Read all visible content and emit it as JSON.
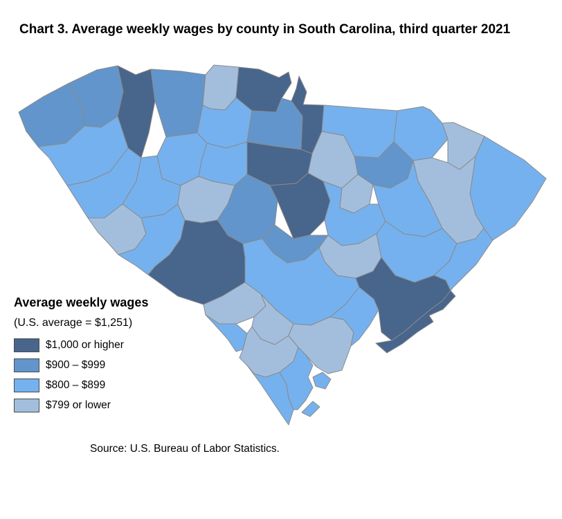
{
  "title": "Chart 3. Average weekly wages by county in South Carolina, third quarter 2021",
  "source": "Source: U.S. Bureau of Labor Statistics.",
  "legend": {
    "heading": "Average weekly wages",
    "subheading": "(U.S. average = $1,251)",
    "classes": [
      {
        "key": "c1",
        "label": "$1,000 or higher",
        "color": "#48658c"
      },
      {
        "key": "c2",
        "label": "$900 – $999",
        "color": "#6295cb"
      },
      {
        "key": "c3",
        "label": "$800 – $899",
        "color": "#75b1ee"
      },
      {
        "key": "c4",
        "label": "$799 or lower",
        "color": "#a3bedd"
      }
    ]
  },
  "chart_data": {
    "type": "heatmap",
    "subtype": "choropleth-map",
    "title": "Chart 3. Average weekly wages by county in South Carolina, third quarter 2021",
    "geography": "South Carolina counties",
    "period": "third quarter 2021",
    "measure": "Average weekly wages",
    "us_average": "$1,251",
    "legend_position": "left-middle",
    "bins": [
      {
        "label": "$1,000 or higher",
        "color": "#48658c",
        "counties": [
          "Greenville",
          "York",
          "Lancaster",
          "Fairfield",
          "Richland",
          "Aiken",
          "Berkeley",
          "Charleston"
        ]
      },
      {
        "label": "$900 – $999",
        "color": "#6295cb",
        "counties": [
          "Oconee",
          "Pickens",
          "Spartanburg",
          "Chester",
          "Lexington",
          "Calhoun",
          "Darlington"
        ]
      },
      {
        "label": "$800 – $899",
        "color": "#75b1ee",
        "counties": [
          "Anderson",
          "Abbeville",
          "Laurens",
          "Union",
          "Greenwood",
          "Newberry",
          "Edgefield",
          "Chesterfield",
          "Marlboro",
          "Sumter",
          "Florence",
          "Horry",
          "Williamsburg",
          "Georgetown",
          "Orangeburg",
          "Dorchester",
          "Allendale",
          "Jasper",
          "Beaufort"
        ]
      },
      {
        "label": "$799 or lower",
        "color": "#a3bedd",
        "counties": [
          "Cherokee",
          "McCormick",
          "Saluda",
          "Kershaw",
          "Lee",
          "Dillon",
          "Marion",
          "Clarendon",
          "Barnwell",
          "Bamberg",
          "Hampton",
          "Colleton"
        ]
      }
    ],
    "source": "U.S. Bureau of Labor Statistics"
  },
  "map": {
    "border_color": "#8a8a8a",
    "bin_colors": {
      "c1": "#48658c",
      "c2": "#6295cb",
      "c3": "#75b1ee",
      "c4": "#a3bedd"
    },
    "counties": [
      {
        "name": "Oconee",
        "bin": "c2",
        "rings": [
          "27,162 62,140 98,121 118,150 122,182 95,207 55,212 38,190"
        ]
      },
      {
        "name": "Pickens",
        "bin": "c2",
        "rings": [
          "98,121 140,101 170,95 178,132 170,168 146,184 122,182 118,150"
        ]
      },
      {
        "name": "Greenville",
        "bin": "c1",
        "rings": [
          "170,95 196,108 218,100 224,146 215,192 204,228 185,214 170,168 178,132"
        ]
      },
      {
        "name": "Spartanburg",
        "bin": "c2",
        "rings": [
          "218,100 262,103 297,108 293,152 285,192 240,198 224,146"
        ]
      },
      {
        "name": "Cherokee",
        "bin": "c4",
        "rings": [
          "297,108 309,94 345,97 341,141 325,159 303,157 293,152"
        ]
      },
      {
        "name": "York",
        "bin": "c1",
        "rings": [
          "345,97 374,100 403,112 417,104 421,120 407,142 399,162 364,160 341,141"
        ]
      },
      {
        "name": "Lancaster",
        "bin": "c1",
        "rings": [
          "432,110 443,133 438,151 468,152 465,190 451,222 435,216 437,168 421,146 428,128"
        ]
      },
      {
        "name": "Union",
        "bin": "c3",
        "rings": [
          "293,152 303,157 325,159 341,141 364,160 357,205 327,214 299,207 285,192"
        ]
      },
      {
        "name": "Chester",
        "bin": "c2",
        "rings": [
          "364,160 399,162 407,142 421,146 437,168 435,216 395,211 357,205"
        ]
      },
      {
        "name": "Chesterfield",
        "bin": "c3",
        "rings": [
          "468,152 520,156 574,160 569,205 547,228 512,226 497,196 465,190"
        ]
      },
      {
        "name": "Marlboro",
        "bin": "c3",
        "rings": [
          "574,160 611,154 622,159 639,178 647,201 624,228 597,232 569,205"
        ]
      },
      {
        "name": "Dillon",
        "bin": "c4",
        "rings": [
          "639,178 655,177 700,197 687,226 664,245 647,235 647,201"
        ]
      },
      {
        "name": "Horry",
        "bin": "c3",
        "rings": [
          "700,197 757,231 789,258 769,292 744,326 712,347 699,330 687,310 679,280 687,226"
        ]
      },
      {
        "name": "Marion",
        "bin": "c4",
        "rings": [
          "597,232 624,228 647,235 664,245 687,226 679,280 687,310 699,330 687,345 660,352 639,330 621,292 604,262"
        ]
      },
      {
        "name": "Darlington",
        "bin": "c2",
        "rings": [
          "512,226 547,228 569,205 597,232 589,258 564,272 539,267 517,252"
        ]
      },
      {
        "name": "Florence",
        "bin": "c3",
        "rings": [
          "589,258 597,232 604,262 621,292 639,330 614,342 584,338 557,320 547,295 539,267 564,272"
        ]
      },
      {
        "name": "Kershaw",
        "bin": "c4",
        "rings": [
          "451,222 465,190 497,196 512,226 517,252 494,272 467,262 445,250"
        ]
      },
      {
        "name": "Lee",
        "bin": "c4",
        "rings": [
          "494,272 517,252 539,267 534,295 511,308 491,300"
        ]
      },
      {
        "name": "Fairfield",
        "bin": "c1",
        "rings": [
          "357,205 395,211 435,216 451,222 445,250 428,265 390,268 357,252"
        ]
      },
      {
        "name": "Newberry",
        "bin": "c3",
        "rings": [
          "299,207 327,214 357,205 357,252 339,268 307,262 287,255 291,232"
        ]
      },
      {
        "name": "Laurens",
        "bin": "c3",
        "rings": [
          "240,198 285,192 299,207 291,232 287,255 261,268 234,258 227,225"
        ]
      },
      {
        "name": "Anderson",
        "bin": "c3",
        "rings": [
          "55,212 95,207 122,182 146,184 170,168 185,214 159,248 127,262 97,268 71,228"
        ]
      },
      {
        "name": "Abbeville",
        "bin": "c3",
        "rings": [
          "97,268 127,262 159,248 185,214 204,228 197,262 177,295 151,315 127,315 111,290"
        ]
      },
      {
        "name": "Greenwood",
        "bin": "c3",
        "rings": [
          "204,228 227,225 234,258 261,268 257,295 237,310 204,315 177,295 197,262"
        ]
      },
      {
        "name": "McCormick",
        "bin": "c4",
        "rings": [
          "127,315 151,315 177,295 204,315 211,338 195,360 171,368 157,352 141,335"
        ]
      },
      {
        "name": "Edgefield",
        "bin": "c3",
        "rings": [
          "195,360 211,338 204,315 237,310 257,295 267,318 261,345 245,368 224,385 214,397 195,383 177,372 171,368"
        ]
      },
      {
        "name": "Saluda",
        "bin": "c4",
        "rings": [
          "257,295 261,268 287,255 307,262 339,268 329,295 314,318 291,322 267,318"
        ]
      },
      {
        "name": "Lexington",
        "bin": "c2",
        "rings": [
          "339,268 357,252 390,268 401,290 397,325 379,345 351,352 329,340 317,322 314,318 329,295"
        ]
      },
      {
        "name": "Richland",
        "bin": "c1",
        "rings": [
          "390,268 428,265 445,250 467,262 477,290 469,318 447,340 424,345 401,290"
        ]
      },
      {
        "name": "Sumter",
        "bin": "c3",
        "rings": [
          "467,262 494,272 491,300 511,308 534,295 547,295 557,320 544,338 519,352 494,355 474,340 469,318 477,290"
        ]
      },
      {
        "name": "Clarendon",
        "bin": "c4",
        "rings": [
          "474,340 494,355 519,352 544,338 551,372 539,392 514,402 487,398 469,378 461,358"
        ]
      },
      {
        "name": "Williamsburg",
        "bin": "c3",
        "rings": [
          "557,320 584,338 614,342 639,330 660,352 649,378 627,398 599,408 571,398 551,372 544,338"
        ]
      },
      {
        "name": "Georgetown",
        "bin": "c3",
        "rings": [
          "660,352 687,345 699,330 712,347 688,382 655,415 651,420 644,405 627,398 649,378"
        ]
      },
      {
        "name": "Calhoun",
        "bin": "c2",
        "rings": [
          "379,345 397,325 424,345 447,340 474,340 461,358 441,375 415,380 394,365"
        ]
      },
      {
        "name": "Aiken",
        "bin": "c1",
        "rings": [
          "267,318 291,322 314,318 317,322 329,340 351,352 354,372 354,408 321,428 294,440 257,428 239,415 214,397 224,385 245,368 261,345"
        ]
      },
      {
        "name": "Orangeburg",
        "bin": "c3",
        "rings": [
          "354,372 351,352 379,345 394,365 415,380 441,375 461,358 469,378 487,398 514,402 519,415 499,440 477,458 449,470 424,468 399,448 377,425 354,408"
        ]
      },
      {
        "name": "Barnwell",
        "bin": "c4",
        "rings": [
          "294,440 321,428 354,408 377,425 384,442 367,458 341,468 317,468 297,455"
        ]
      },
      {
        "name": "Bamberg",
        "bin": "c4",
        "rings": [
          "377,425 399,448 424,468 417,485 397,498 377,490 364,472 367,458 384,442"
        ]
      },
      {
        "name": "Allendale",
        "bin": "c3",
        "rings": [
          "297,455 317,468 341,468 357,482 351,505 341,508 329,490 311,470"
        ]
      },
      {
        "name": "Hampton",
        "bin": "c4",
        "rings": [
          "351,505 357,482 364,472 377,490 397,498 417,485 431,502 424,522 404,538 384,545 367,540 357,528 346,517"
        ]
      },
      {
        "name": "Colleton",
        "bin": "c4",
        "rings": [
          "417,485 424,468 449,470 477,458 497,462 511,480 507,500 494,535 474,540 457,530 441,512 431,502"
        ]
      },
      {
        "name": "Dorchester",
        "bin": "c3",
        "rings": [
          "477,458 499,440 519,415 540,432 547,448 534,470 519,490 507,500 511,480 497,462"
        ]
      },
      {
        "name": "Berkeley",
        "bin": "c1",
        "rings": [
          "514,402 539,392 551,372 571,398 599,408 627,398 644,405 651,420 639,435 621,448 604,462 586,478 566,492 551,480 547,448 540,432 519,415"
        ]
      },
      {
        "name": "Charleston",
        "bin": "c1",
        "rings": [
          "651,420 658,428 640,447 620,456 626,465 603,480 581,497 559,510 543,496 566,492 586,478 604,462 621,448 639,435"
        ]
      },
      {
        "name": "Jasper",
        "bin": "c3",
        "rings": [
          "357,528 367,540 384,545 404,538 414,555 417,575 424,592 417,614 397,585 377,555"
        ]
      },
      {
        "name": "Beaufort",
        "bin": "c3",
        "rings": [
          "404,538 424,522 431,502 441,512 452,528 445,545 452,560 442,578 430,592 424,592 417,575 414,555",
          "452,545 466,538 478,548 470,562 456,558",
          "436,596 452,580 462,588 448,602"
        ]
      }
    ]
  }
}
